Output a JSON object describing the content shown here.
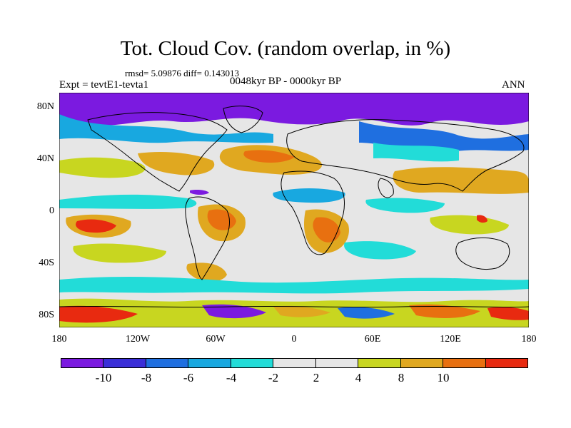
{
  "title": "Tot. Cloud Cov. (random overlap, in %)",
  "stats_line": "rmsd= 5.09876 diff= 0.143013",
  "period_line": "0048kyr BP - 0000kyr BP",
  "experiment_label": "Expt = tevtE1-tevta1",
  "season_label": "ANN",
  "map": {
    "projection": "cylindrical equidistant",
    "field_description": "annual total cloud cover difference",
    "lat_ticks": [
      "80N",
      "40N",
      "0",
      "40S",
      "80S"
    ],
    "lon_ticks": [
      "180",
      "120W",
      "60W",
      "0",
      "60E",
      "120E",
      "180"
    ],
    "lon_range": [
      -180,
      180
    ],
    "lat_range": [
      -90,
      90
    ]
  },
  "colorbar": {
    "colors": [
      "#7b1ae0",
      "#3a2ed8",
      "#1f6fe0",
      "#18a8e0",
      "#22dcd8",
      "#e6e6e6",
      "#e6e6e6",
      "#c8d620",
      "#e0a820",
      "#e87010",
      "#e82a10"
    ],
    "labels": [
      "-10",
      "-8",
      "-6",
      "-4",
      "-2",
      "2",
      "4",
      "8",
      "10"
    ]
  }
}
